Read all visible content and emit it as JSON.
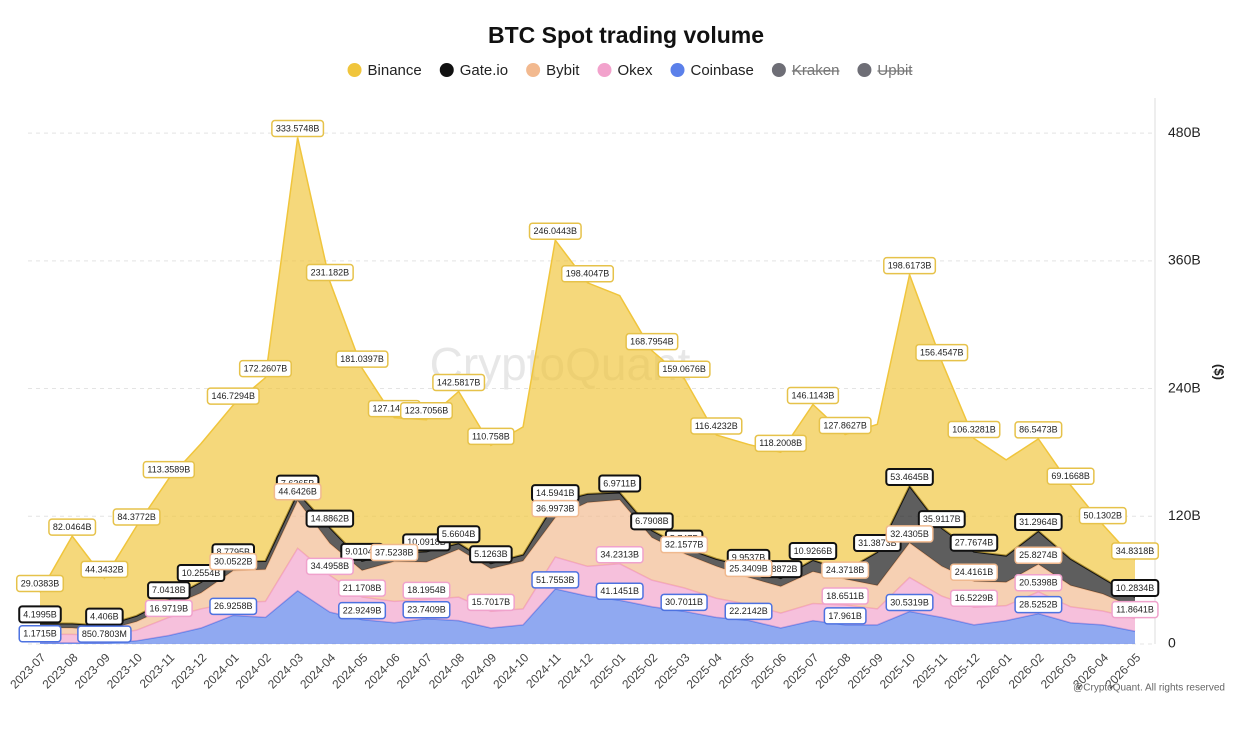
{
  "chart_data": {
    "type": "stacked_area",
    "title": "BTC Spot trading volume",
    "y_label": "($)",
    "watermark": "CryptoQuant",
    "copyright": "@CryptoQuant. All rights reserved",
    "categories": [
      "2023-07",
      "2023-08",
      "2023-09",
      "2023-10",
      "2023-11",
      "2023-12",
      "2024-01",
      "2024-02",
      "2024-03",
      "2024-04",
      "2024-05",
      "2024-06",
      "2024-07",
      "2024-08",
      "2024-09",
      "2024-10",
      "2024-11",
      "2024-12",
      "2025-01",
      "2025-02",
      "2025-03",
      "2025-04",
      "2025-05",
      "2025-06",
      "2025-07",
      "2025-08",
      "2025-09",
      "2025-10",
      "2025-11",
      "2025-12",
      "2026-01",
      "2026-02",
      "2026-03",
      "2026-04",
      "2026-05"
    ],
    "ylim": [
      0,
      513
    ],
    "yticks": [
      0,
      {
        "value": 120,
        "label": "120B"
      },
      {
        "value": 240,
        "label": "240B"
      },
      {
        "value": 360,
        "label": "360B"
      },
      {
        "value": 480,
        "label": "480B"
      }
    ],
    "grid": true,
    "legend": "top",
    "series": [
      {
        "name": "Binance",
        "color": "#f0c53c",
        "border": "#e6c24a",
        "values": [
          29.0383,
          82.0464,
          44.3432,
          84.3772,
          113.3589,
          130,
          146.7294,
          172.2607,
          333.5748,
          231.182,
          181.0397,
          127.1417,
          123.7056,
          142.5817,
          110.758,
          120,
          246.0443,
          198.4047,
          185,
          168.7954,
          159.0676,
          116.4232,
          115,
          118.2008,
          146.1143,
          127.8627,
          120,
          198.6173,
          156.4547,
          106.3281,
          90,
          86.5473,
          69.1668,
          50.1302,
          34.8318
        ],
        "value_labels": [
          "29.0383B",
          "82.0464B",
          "44.3432B",
          "84.3772B",
          "113.3589B",
          null,
          "146.7294B",
          "172.2607B",
          "333.5748B",
          "231.182B",
          "181.0397B",
          "127.1417B",
          "123.7056B",
          "142.5817B",
          "110.758B",
          null,
          "246.0443B",
          "198.4047B",
          null,
          "168.7954B",
          "159.0676B",
          "116.4232B",
          null,
          "118.2008B",
          "146.1143B",
          "127.8627B",
          null,
          "198.6173B",
          "156.4547B",
          "106.3281B",
          null,
          "86.5473B",
          "69.1668B",
          "50.1302B",
          "34.8318B"
        ]
      },
      {
        "name": "Gate.io",
        "color": "#111111",
        "border": "#111111",
        "values": [
          4.1995,
          4.3,
          4.406,
          5.5,
          7.0418,
          10.2554,
          8.7795,
          8,
          7.6365,
          14.8862,
          9.0104,
          8,
          10.0918,
          5.6604,
          5.1263,
          6,
          14.5941,
          8,
          6.9711,
          6.7908,
          5.747,
          7,
          9.9537,
          7.8872,
          10.9266,
          8,
          31.3873,
          53.4645,
          35.9117,
          27.7674,
          25,
          31.2964,
          25,
          15,
          10.2834
        ],
        "value_labels": [
          "4.1995B",
          null,
          "4.406B",
          null,
          "7.0418B",
          "10.2554B",
          "8.7795B",
          null,
          "7.6365B",
          "14.8862B",
          "9.0104B",
          null,
          "10.0918B",
          "5.6604B",
          "5.1263B",
          null,
          "14.5941B",
          null,
          "6.9711B",
          "6.7908B",
          "5.747B",
          null,
          "9.9537B",
          "7.8872B",
          "10.9266B",
          null,
          "31.3873B",
          "53.4645B",
          "35.9117B",
          "27.7674B",
          null,
          "31.2964B",
          null,
          null,
          "10.2834B"
        ]
      },
      {
        "name": "Bybit",
        "color": "#f2b98f",
        "border": "#f0b98f",
        "values": [
          6,
          6,
          5,
          8,
          10,
          15,
          30.0522,
          30,
          44.6426,
          30,
          25,
          37.5238,
          35,
          45,
          40,
          45,
          36.9973,
          60,
          60,
          40,
          32.1577,
          30,
          25.3409,
          25,
          30,
          24.3718,
          22,
          32.4305,
          28,
          24.4161,
          22,
          25.8274,
          20,
          16,
          10
        ],
        "value_labels": [
          null,
          null,
          null,
          null,
          null,
          null,
          "30.0522B",
          null,
          "44.6426B",
          null,
          null,
          "37.5238B",
          null,
          null,
          null,
          null,
          "36.9973B",
          null,
          null,
          null,
          "32.1577B",
          null,
          "25.3409B",
          null,
          null,
          "24.3718B",
          null,
          "32.4305B",
          null,
          "24.4161B",
          null,
          "25.8274B",
          null,
          null,
          null
        ]
      },
      {
        "name": "Okex",
        "color": "#f2a2cc",
        "border": "#f0a2cc",
        "values": [
          8,
          8,
          7,
          10,
          16.9719,
          18,
          12,
          15,
          40,
          34.4958,
          21.1708,
          20,
          18.1954,
          22,
          15.7017,
          15,
          30,
          28,
          34.2313,
          25,
          22,
          18,
          15,
          14,
          16,
          18.6511,
          15,
          32,
          20,
          16.5229,
          14,
          20.5398,
          15,
          13,
          11.8641
        ],
        "value_labels": [
          null,
          null,
          null,
          null,
          "16.9719B",
          null,
          null,
          null,
          null,
          "34.4958B",
          "21.1708B",
          null,
          "18.1954B",
          null,
          "15.7017B",
          null,
          null,
          null,
          "34.2313B",
          null,
          null,
          null,
          null,
          null,
          null,
          "18.6511B",
          null,
          null,
          null,
          "16.5229B",
          null,
          "20.5398B",
          null,
          null,
          "11.8641B"
        ]
      },
      {
        "name": "Coinbase",
        "color": "#5b80ea",
        "border": "#4d72e0",
        "values": [
          1.1715,
          1,
          0.8507803,
          3,
          8,
          15,
          26.9258,
          25,
          50,
          30,
          22.9249,
          20,
          23.7409,
          22,
          15,
          18,
          51.7553,
          45,
          41.1451,
          35,
          30.7011,
          25,
          22.2142,
          15,
          22,
          17.961,
          18,
          30.5319,
          25,
          18,
          22,
          28.5252,
          20,
          18,
          12
        ],
        "value_labels": [
          "1.1715B",
          null,
          "850.7803M",
          null,
          null,
          null,
          "26.9258B",
          null,
          null,
          null,
          "22.9249B",
          null,
          "23.7409B",
          null,
          null,
          null,
          "51.7553B",
          null,
          "41.1451B",
          null,
          "30.7011B",
          null,
          "22.2142B",
          null,
          null,
          "17.961B",
          null,
          "30.5319B",
          null,
          null,
          null,
          "28.5252B",
          null,
          null,
          null
        ]
      }
    ],
    "hidden_series": [
      {
        "name": "Kraken",
        "color": "#6e6e76"
      },
      {
        "name": "Upbit",
        "color": "#6e6e76"
      }
    ]
  }
}
